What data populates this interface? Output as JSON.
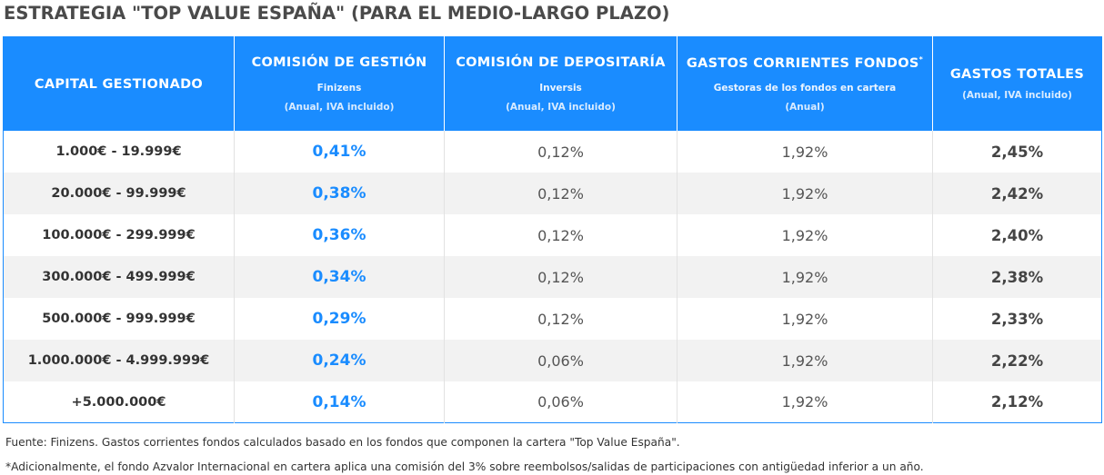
{
  "title": "ESTRATEGIA \"TOP VALUE ESPAÑA\" (PARA EL MEDIO-LARGO PLAZO)",
  "table": {
    "headers": [
      {
        "main": "CAPITAL GESTIONADO",
        "sub": "",
        "note": ""
      },
      {
        "main": "COMISIÓN DE GESTIÓN",
        "sub": "Finizens",
        "note": "(Anual, IVA incluido)"
      },
      {
        "main": "COMISIÓN DE DEPOSITARÍA",
        "sub": "Inversis",
        "note": "(Anual, IVA incluido)"
      },
      {
        "main": "GASTOS CORRIENTES FONDOS",
        "sup": "*",
        "sub": "Gestoras de los fondos en cartera",
        "note": "(Anual)"
      },
      {
        "main": "GASTOS TOTALES",
        "sub": "",
        "note": "(Anual, IVA incluido)"
      }
    ],
    "rows": [
      {
        "capital": "1.000€ - 19.999€",
        "gestion": "0,41%",
        "depositaria": "0,12%",
        "corrientes": "1,92%",
        "total": "2,45%"
      },
      {
        "capital": "20.000€ - 99.999€",
        "gestion": "0,38%",
        "depositaria": "0,12%",
        "corrientes": "1,92%",
        "total": "2,42%"
      },
      {
        "capital": "100.000€ - 299.999€",
        "gestion": "0,36%",
        "depositaria": "0,12%",
        "corrientes": "1,92%",
        "total": "2,40%"
      },
      {
        "capital": "300.000€ - 499.999€",
        "gestion": "0,34%",
        "depositaria": "0,12%",
        "corrientes": "1,92%",
        "total": "2,38%"
      },
      {
        "capital": "500.000€ - 999.999€",
        "gestion": "0,29%",
        "depositaria": "0,12%",
        "corrientes": "1,92%",
        "total": "2,33%"
      },
      {
        "capital": "1.000.000€ - 4.999.999€",
        "gestion": "0,24%",
        "depositaria": "0,06%",
        "corrientes": "1,92%",
        "total": "2,22%"
      },
      {
        "capital": "+5.000.000€",
        "gestion": "0,14%",
        "depositaria": "0,06%",
        "corrientes": "1,92%",
        "total": "2,12%"
      }
    ]
  },
  "notes": {
    "source": "Fuente: Finizens. Gastos corrientes fondos calculados basado en los fondos que componen la cartera \"Top Value España\".",
    "footnote": "*Adicionalmente, el fondo Azvalor Internacional en cartera aplica una comisión del 3% sobre reembolsos/salidas de participaciones con antigüedad inferior a un año."
  },
  "colors": {
    "header_bg": "#1a8cff",
    "management_fee_text": "#1a8cff",
    "row_alt_bg": "#f2f2f2"
  }
}
